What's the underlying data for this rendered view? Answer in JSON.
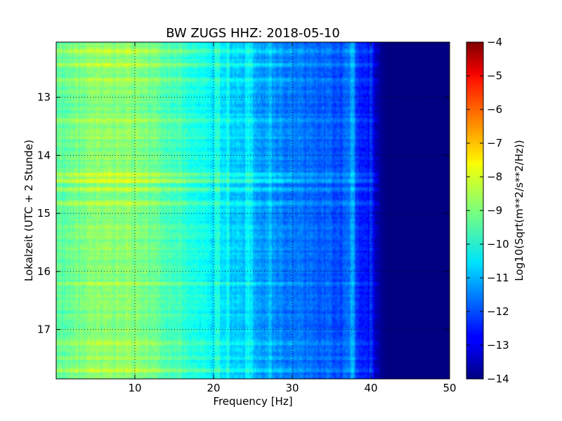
{
  "chart_data": {
    "type": "heatmap",
    "title": "BW ZUGS HHZ: 2018-05-10",
    "xlabel": "Frequency [Hz]",
    "ylabel": "Lokalzeit (UTC + 2 Stunde)",
    "xlim": [
      0,
      50
    ],
    "ylim": [
      12.05,
      17.85
    ],
    "y_inverted": true,
    "x_ticks": [
      10,
      20,
      30,
      40,
      50
    ],
    "x_tick_labels": [
      "10",
      "20",
      "30",
      "40",
      "50"
    ],
    "y_ticks": [
      13,
      14,
      15,
      16,
      17
    ],
    "y_tick_labels": [
      "13",
      "14",
      "15",
      "16",
      "17"
    ],
    "grid": true,
    "colormap": "jet",
    "colorbar": {
      "label": "Log10(Sqrt(m**2/s**2/Hz))",
      "range": [
        -14,
        -4
      ],
      "ticks": [
        -4,
        -5,
        -6,
        -7,
        -8,
        -9,
        -10,
        -11,
        -12,
        -13,
        -14
      ],
      "tick_labels": [
        "−4",
        "−5",
        "−6",
        "−7",
        "−8",
        "−9",
        "−10",
        "−11",
        "−12",
        "−13",
        "−14"
      ]
    },
    "spectral_profile": {
      "frequency": [
        0.5,
        3,
        6,
        9,
        11,
        13,
        15,
        17,
        19,
        20,
        22,
        24,
        25,
        27,
        30,
        33,
        36,
        37.5,
        38.5,
        40,
        41,
        42,
        45,
        50
      ],
      "level": [
        -9.3,
        -9.1,
        -8.9,
        -8.9,
        -9.1,
        -9.3,
        -9.6,
        -9.9,
        -10.2,
        -10.5,
        -10.7,
        -10.9,
        -11.1,
        -11.3,
        -11.6,
        -11.8,
        -12.0,
        -11.7,
        -12.3,
        -12.8,
        -13.7,
        -14.0,
        -14.0,
        -14.0
      ]
    },
    "notable_lines_hz": [
      20.5,
      21.8,
      24.3,
      24.8,
      27.2,
      37.7,
      40.0
    ],
    "time_bands": [
      {
        "time": 12.2,
        "offset": 0.5
      },
      {
        "time": 12.45,
        "offset": 0.6
      },
      {
        "time": 12.7,
        "offset": 0.5
      },
      {
        "time": 13.4,
        "offset": 0.6
      },
      {
        "time": 13.7,
        "offset": 0.4
      },
      {
        "time": 14.35,
        "offset": 0.7
      },
      {
        "time": 14.45,
        "offset": 0.8
      },
      {
        "time": 14.6,
        "offset": 0.6
      },
      {
        "time": 14.85,
        "offset": 0.5
      },
      {
        "time": 16.2,
        "offset": 0.4
      },
      {
        "time": 17.25,
        "offset": 0.5
      },
      {
        "time": 17.5,
        "offset": 0.4
      },
      {
        "time": 17.7,
        "offset": 0.5
      }
    ]
  }
}
